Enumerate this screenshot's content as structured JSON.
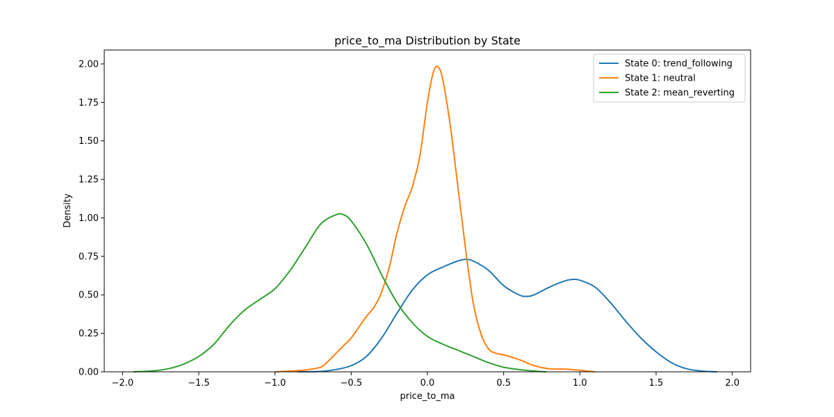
{
  "chart_data": {
    "type": "line",
    "title": "price_to_ma Distribution by State",
    "xlabel": "price_to_ma",
    "ylabel": "Density",
    "xlim": [
      -2.12,
      2.12
    ],
    "ylim": [
      0,
      2.09
    ],
    "x_ticks": [
      -2.0,
      -1.5,
      -1.0,
      -0.5,
      0.0,
      0.5,
      1.0,
      1.5,
      2.0
    ],
    "x_tick_labels": [
      "−2.0",
      "−1.5",
      "−1.0",
      "−0.5",
      "0.0",
      "0.5",
      "1.0",
      "1.5",
      "2.0"
    ],
    "y_ticks": [
      0,
      0.25,
      0.5,
      0.75,
      1.0,
      1.25,
      1.5,
      1.75,
      2.0
    ],
    "y_tick_labels": [
      "0.00",
      "0.25",
      "0.50",
      "0.75",
      "1.00",
      "1.25",
      "1.50",
      "1.75",
      "2.00"
    ],
    "grid": false,
    "legend_position": "top-right",
    "series": [
      {
        "name": "State 0: trend_following",
        "color": "#1f77b4",
        "points": [
          [
            -0.85,
            0
          ],
          [
            -0.7,
            0.003
          ],
          [
            -0.6,
            0.015
          ],
          [
            -0.5,
            0.04
          ],
          [
            -0.4,
            0.1
          ],
          [
            -0.3,
            0.22
          ],
          [
            -0.2,
            0.38
          ],
          [
            -0.1,
            0.53
          ],
          [
            0.0,
            0.63
          ],
          [
            0.1,
            0.68
          ],
          [
            0.2,
            0.72
          ],
          [
            0.25,
            0.73
          ],
          [
            0.3,
            0.72
          ],
          [
            0.4,
            0.66
          ],
          [
            0.5,
            0.56
          ],
          [
            0.6,
            0.5
          ],
          [
            0.65,
            0.49
          ],
          [
            0.7,
            0.5
          ],
          [
            0.8,
            0.55
          ],
          [
            0.9,
            0.59
          ],
          [
            0.95,
            0.6
          ],
          [
            1.0,
            0.595
          ],
          [
            1.1,
            0.55
          ],
          [
            1.2,
            0.45
          ],
          [
            1.3,
            0.33
          ],
          [
            1.4,
            0.22
          ],
          [
            1.5,
            0.13
          ],
          [
            1.6,
            0.06
          ],
          [
            1.7,
            0.02
          ],
          [
            1.8,
            0.005
          ],
          [
            1.9,
            0.0
          ]
        ]
      },
      {
        "name": "State 1: neutral",
        "color": "#ff7f0e",
        "points": [
          [
            -1.0,
            0
          ],
          [
            -0.9,
            0.005
          ],
          [
            -0.8,
            0.012
          ],
          [
            -0.7,
            0.03
          ],
          [
            -0.65,
            0.07
          ],
          [
            -0.6,
            0.12
          ],
          [
            -0.55,
            0.17
          ],
          [
            -0.5,
            0.22
          ],
          [
            -0.45,
            0.29
          ],
          [
            -0.4,
            0.36
          ],
          [
            -0.35,
            0.42
          ],
          [
            -0.3,
            0.52
          ],
          [
            -0.25,
            0.68
          ],
          [
            -0.2,
            0.9
          ],
          [
            -0.15,
            1.07
          ],
          [
            -0.1,
            1.2
          ],
          [
            -0.05,
            1.4
          ],
          [
            0.0,
            1.75
          ],
          [
            0.04,
            1.95
          ],
          [
            0.07,
            1.98
          ],
          [
            0.1,
            1.9
          ],
          [
            0.15,
            1.6
          ],
          [
            0.2,
            1.2
          ],
          [
            0.25,
            0.8
          ],
          [
            0.3,
            0.45
          ],
          [
            0.35,
            0.25
          ],
          [
            0.4,
            0.15
          ],
          [
            0.45,
            0.12
          ],
          [
            0.5,
            0.11
          ],
          [
            0.6,
            0.08
          ],
          [
            0.7,
            0.04
          ],
          [
            0.8,
            0.02
          ],
          [
            0.9,
            0.018
          ],
          [
            1.0,
            0.01
          ],
          [
            1.1,
            0.0
          ]
        ]
      },
      {
        "name": "State 2: mean_reverting",
        "color": "#2ca02c",
        "points": [
          [
            -1.93,
            0
          ],
          [
            -1.8,
            0.006
          ],
          [
            -1.7,
            0.02
          ],
          [
            -1.6,
            0.05
          ],
          [
            -1.5,
            0.1
          ],
          [
            -1.4,
            0.18
          ],
          [
            -1.3,
            0.3
          ],
          [
            -1.2,
            0.4
          ],
          [
            -1.1,
            0.47
          ],
          [
            -1.0,
            0.54
          ],
          [
            -0.9,
            0.66
          ],
          [
            -0.8,
            0.81
          ],
          [
            -0.7,
            0.96
          ],
          [
            -0.6,
            1.02
          ],
          [
            -0.55,
            1.02
          ],
          [
            -0.5,
            0.98
          ],
          [
            -0.4,
            0.83
          ],
          [
            -0.3,
            0.63
          ],
          [
            -0.2,
            0.45
          ],
          [
            -0.1,
            0.32
          ],
          [
            0.0,
            0.23
          ],
          [
            0.1,
            0.18
          ],
          [
            0.2,
            0.14
          ],
          [
            0.3,
            0.1
          ],
          [
            0.4,
            0.06
          ],
          [
            0.5,
            0.03
          ],
          [
            0.6,
            0.015
          ],
          [
            0.7,
            0.005
          ],
          [
            0.78,
            0.0
          ]
        ]
      }
    ]
  }
}
